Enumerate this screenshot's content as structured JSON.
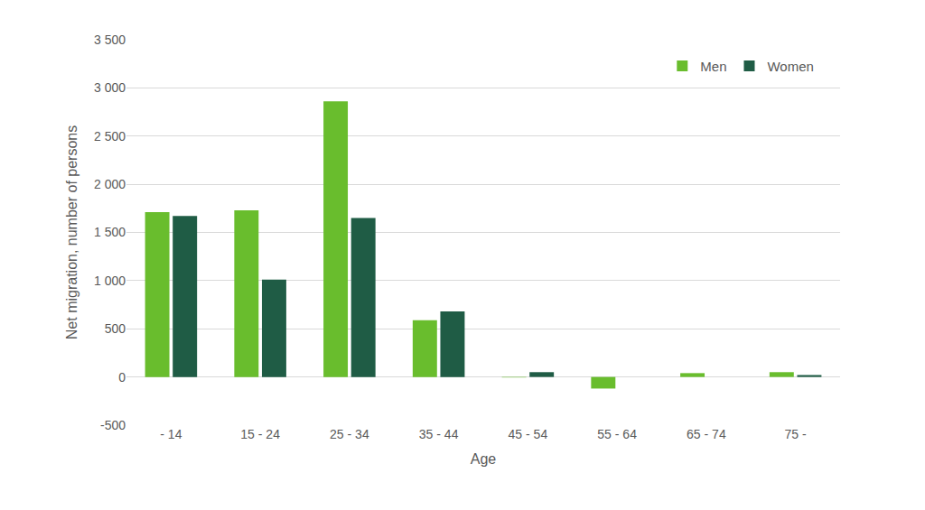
{
  "chart_data": {
    "type": "bar",
    "x_label": "Age",
    "y_label": "Net migration, number of persons",
    "categories": [
      "- 14",
      "15 - 24",
      "25 - 34",
      "35 - 44",
      "45 - 54",
      "55 - 64",
      "65 - 74",
      "75 -"
    ],
    "series": [
      {
        "name": "Men",
        "color": "#69bd2d",
        "values": [
          1710,
          1730,
          2860,
          590,
          -5,
          -120,
          40,
          50
        ]
      },
      {
        "name": "Women",
        "color": "#1f5c45",
        "values": [
          1670,
          1010,
          1650,
          680,
          50,
          0,
          0,
          20
        ]
      }
    ],
    "ylim": [
      -500,
      3500
    ],
    "yticks": [
      -500,
      0,
      500,
      {
        "value": 1000,
        "label": "1 000"
      },
      {
        "value": 1500,
        "label": "1 500"
      },
      {
        "value": 2000,
        "label": "2 000"
      },
      {
        "value": 2500,
        "label": "2 500"
      },
      {
        "value": 3000,
        "label": "3 000"
      },
      {
        "value": 3500,
        "label": "3 500"
      }
    ],
    "grid": true,
    "legend": "top right"
  }
}
